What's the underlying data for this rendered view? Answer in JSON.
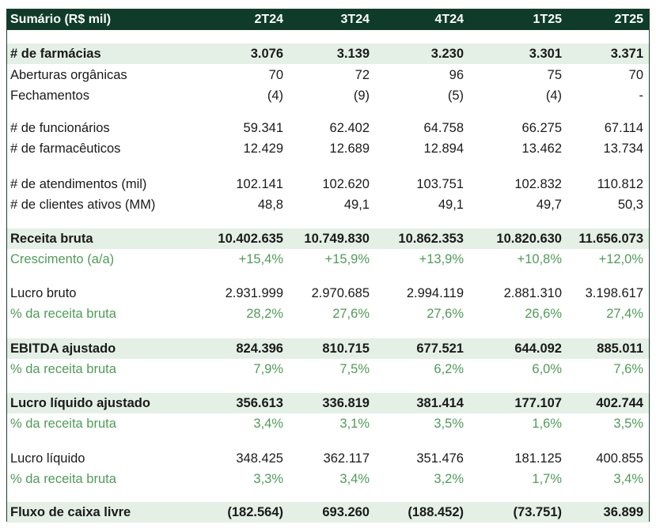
{
  "header": {
    "title": "Sumário (R$ mil)",
    "periods": [
      "2T24",
      "3T24",
      "4T24",
      "1T25",
      "2T25"
    ]
  },
  "rows": [
    {
      "label": "# de farmácias",
      "values": [
        "3.076",
        "3.139",
        "3.230",
        "3.301",
        "3.371"
      ]
    },
    {
      "label": "Aberturas orgânicas",
      "values": [
        "70",
        "72",
        "96",
        "75",
        "70"
      ]
    },
    {
      "label": "Fechamentos",
      "values": [
        "(4)",
        "(9)",
        "(5)",
        "(4)",
        "-"
      ]
    },
    {
      "label": "# de funcionários",
      "values": [
        "59.341",
        "62.402",
        "64.758",
        "66.275",
        "67.114"
      ]
    },
    {
      "label": "# de farmacêuticos",
      "values": [
        "12.429",
        "12.689",
        "12.894",
        "13.462",
        "13.734"
      ]
    },
    {
      "label": "# de atendimentos (mil)",
      "values": [
        "102.141",
        "102.620",
        "103.751",
        "102.832",
        "110.812"
      ]
    },
    {
      "label": "# de clientes ativos (MM)",
      "values": [
        "48,8",
        "49,1",
        "49,1",
        "49,7",
        "50,3"
      ]
    },
    {
      "label": "Receita bruta",
      "values": [
        "10.402.635",
        "10.749.830",
        "10.862.353",
        "10.820.630",
        "11.656.073"
      ]
    },
    {
      "label": "Crescimento (a/a)",
      "values": [
        "+15,4%",
        "+15,9%",
        "+13,9%",
        "+10,8%",
        "+12,0%"
      ]
    },
    {
      "label": "Lucro bruto",
      "values": [
        "2.931.999",
        "2.970.685",
        "2.994.119",
        "2.881.310",
        "3.198.617"
      ]
    },
    {
      "label": "% da receita bruta",
      "values": [
        "28,2%",
        "27,6%",
        "27,6%",
        "26,6%",
        "27,4%"
      ]
    },
    {
      "label": "EBITDA ajustado",
      "values": [
        "824.396",
        "810.715",
        "677.521",
        "644.092",
        "885.011"
      ]
    },
    {
      "label": "% da receita bruta",
      "values": [
        "7,9%",
        "7,5%",
        "6,2%",
        "6,0%",
        "7,6%"
      ]
    },
    {
      "label": "Lucro líquido ajustado",
      "values": [
        "356.613",
        "336.819",
        "381.414",
        "177.107",
        "402.744"
      ]
    },
    {
      "label": "% da receita bruta",
      "values": [
        "3,4%",
        "3,1%",
        "3,5%",
        "1,6%",
        "3,5%"
      ]
    },
    {
      "label": "Lucro líquido",
      "values": [
        "348.425",
        "362.117",
        "351.476",
        "181.125",
        "400.855"
      ]
    },
    {
      "label": "% da receita bruta",
      "values": [
        "3,3%",
        "3,4%",
        "3,2%",
        "1,7%",
        "3,4%"
      ]
    },
    {
      "label": "Fluxo de caixa livre",
      "values": [
        "(182.564)",
        "693.260",
        "(188.452)",
        "(73.751)",
        "36.899"
      ]
    }
  ],
  "colors": {
    "header_bg": "#0f3b2b",
    "highlight_bg": "#e4f0e6",
    "green_text": "#4f9c57"
  }
}
